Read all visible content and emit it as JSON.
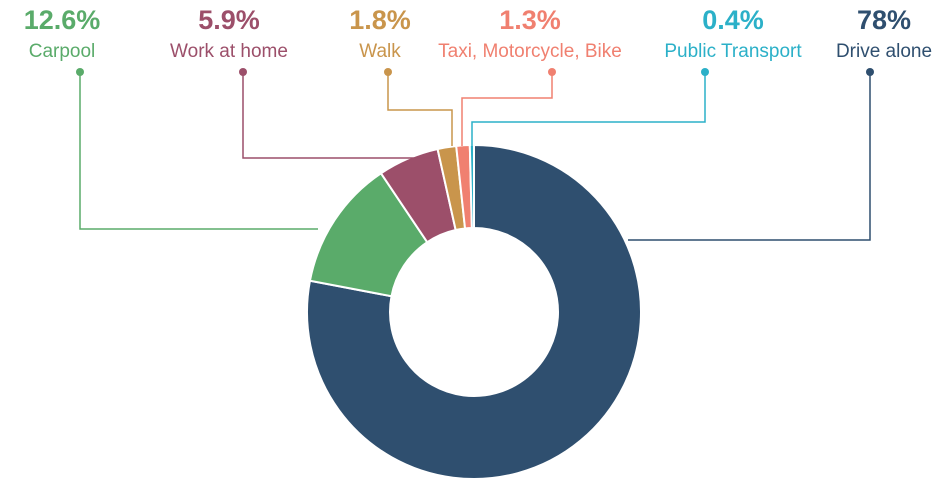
{
  "chart_data": {
    "type": "donut",
    "categories": [
      "Drive alone",
      "Carpool",
      "Work at home",
      "Walk",
      "Taxi, Motorcycle, Bike",
      "Public Transport"
    ],
    "values": [
      78,
      12.6,
      5.9,
      1.8,
      1.3,
      0.4
    ],
    "value_labels": [
      "78%",
      "12.6%",
      "5.9%",
      "1.8%",
      "1.3%",
      "0.4%"
    ],
    "colors": [
      "#2f4f6f",
      "#5aab6a",
      "#9c4f6a",
      "#c9954c",
      "#f08070",
      "#2bb0c8"
    ]
  }
}
